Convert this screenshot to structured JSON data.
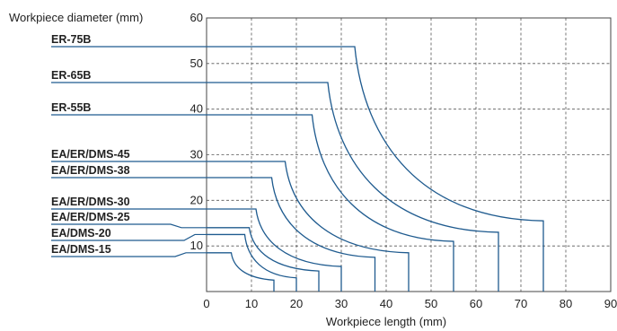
{
  "chart_data": {
    "type": "line",
    "title": "",
    "xlabel": "Workpiece length (mm)",
    "ylabel": "Workpiece diameter (mm)",
    "xlim": [
      0,
      90
    ],
    "ylim": [
      0,
      60
    ],
    "x_ticks": [
      "0",
      "10",
      "20",
      "30",
      "40",
      "50",
      "60",
      "70",
      "80",
      "90"
    ],
    "y_ticks": [
      "10",
      "20",
      "30",
      "40",
      "50",
      "60"
    ],
    "grid": true,
    "line_color": "#1f5b8f",
    "series": [
      {
        "name": "ER-75B",
        "flat_diameter": 52.5,
        "flat_end_length": 33,
        "end_length": 75,
        "end_diameter": 15.5
      },
      {
        "name": "ER-65B",
        "flat_diameter": 45.5,
        "flat_end_length": 27,
        "end_length": 65,
        "end_diameter": 13
      },
      {
        "name": "ER-55B",
        "flat_diameter": 38.5,
        "flat_end_length": 23.5,
        "end_length": 55,
        "end_diameter": 11
      },
      {
        "name": "EA/ER/DMS-45",
        "flat_diameter": 28.5,
        "flat_end_length": 17.5,
        "end_length": 45,
        "end_diameter": 8.5
      },
      {
        "name": "EA/ER/DMS-38",
        "flat_diameter": 24.5,
        "flat_end_length": 14.5,
        "end_length": 37.5,
        "end_diameter": 7.5
      },
      {
        "name": "EA/ER/DMS-30",
        "flat_diameter": 18,
        "flat_end_length": 11,
        "end_length": 30,
        "end_diameter": 5.5
      },
      {
        "name": "EA/ER/DMS-25",
        "flat_diameter": 14,
        "flat_end_length": 9.5,
        "end_length": 25,
        "end_diameter": 4.5
      },
      {
        "name": "EA/DMS-20",
        "flat_diameter": 12.5,
        "flat_end_length": 8.5,
        "end_length": 20,
        "end_diameter": 3
      },
      {
        "name": "EA/DMS-15",
        "flat_diameter": 8.5,
        "flat_end_length": 5.5,
        "end_length": 15,
        "end_diameter": 2.5
      }
    ]
  }
}
